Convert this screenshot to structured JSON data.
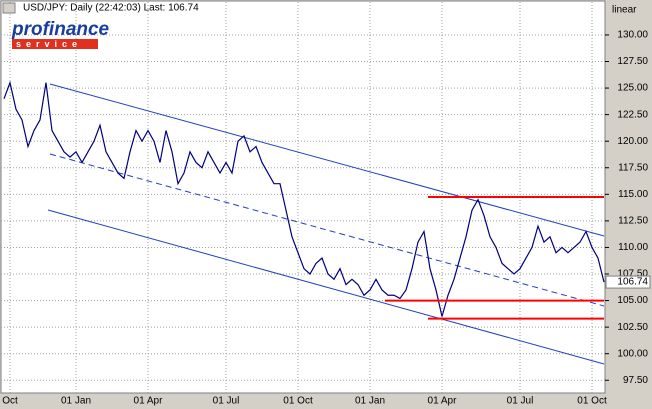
{
  "chart_data": {
    "type": "line",
    "title": "USD/JPY: Daily (22:42:03) Last: 106.74",
    "scale_label": "linear",
    "logo": {
      "top": "profinance",
      "bottom": "service"
    },
    "color": "#000080",
    "grid": true,
    "categories": [
      null,
      "Oct",
      null,
      null,
      null,
      null,
      null,
      null,
      null,
      null,
      null,
      null,
      "01 Jan",
      null,
      null,
      null,
      null,
      null,
      null,
      null,
      null,
      null,
      null,
      null,
      "01 Apr",
      null,
      null,
      null,
      null,
      null,
      null,
      null,
      null,
      null,
      null,
      null,
      null,
      "01 Jul",
      null,
      null,
      null,
      null,
      null,
      null,
      null,
      null,
      null,
      null,
      null,
      "01 Oct",
      null,
      null,
      null,
      null,
      null,
      null,
      null,
      null,
      null,
      null,
      null,
      "01 Jan",
      null,
      null,
      null,
      null,
      null,
      null,
      null,
      null,
      null,
      null,
      null,
      "01 Apr",
      null,
      null,
      null,
      null,
      null,
      null,
      null,
      null,
      null,
      null,
      null,
      null,
      "01 Jul",
      null,
      null,
      null,
      null,
      null,
      null,
      null,
      null,
      null,
      null,
      null,
      "01 Oct",
      null,
      null
    ],
    "values": [
      124,
      125.5,
      123,
      122,
      119.5,
      121,
      122,
      125.5,
      121,
      120,
      119,
      118.5,
      119,
      118,
      119,
      120,
      121.5,
      119,
      118,
      117,
      116.5,
      119,
      121,
      120,
      121,
      120,
      118,
      121,
      119,
      116,
      117,
      119,
      118,
      117.5,
      119,
      118,
      117,
      118,
      117,
      120,
      120.5,
      119,
      119.5,
      118,
      117,
      116,
      116,
      113.5,
      111,
      109.5,
      108,
      107.5,
      108.5,
      109,
      107.5,
      107,
      108,
      106.5,
      107,
      106.5,
      105.5,
      106,
      107,
      106,
      105.5,
      105.5,
      105.2,
      106,
      108,
      110.5,
      111.5,
      108,
      106,
      103.5,
      105.5,
      107,
      109,
      111,
      113.5,
      114.5,
      113,
      111,
      110,
      108.5,
      108,
      107.5,
      108,
      109,
      110,
      112,
      110.5,
      111,
      109.5,
      110,
      109.5,
      110,
      110.5,
      111.5,
      110,
      109,
      106.74
    ],
    "last_value_label": "106.74",
    "levels": [
      114.75,
      105.0,
      103.3
    ],
    "level_color": "#ff0000",
    "ylim": [
      96.3,
      133.1
    ],
    "yticks": [
      {
        "value": 97.5,
        "label": "97.50"
      },
      {
        "value": 100,
        "label": "100.00"
      },
      {
        "value": 102.5,
        "label": "102.50"
      },
      {
        "value": 105,
        "label": "105.00"
      },
      {
        "value": 107.5,
        "label": "107.50"
      },
      {
        "value": 110,
        "label": "110.00"
      },
      {
        "value": 112.5,
        "label": "112.50"
      },
      {
        "value": 115,
        "label": "115.00"
      },
      {
        "value": 117.5,
        "label": "117.50"
      },
      {
        "value": 120,
        "label": "120.00"
      },
      {
        "value": 122.5,
        "label": "122.50"
      },
      {
        "value": 125,
        "label": "125.00"
      },
      {
        "value": 127.5,
        "label": "127.50"
      },
      {
        "value": 130,
        "label": "130.00"
      }
    ]
  }
}
